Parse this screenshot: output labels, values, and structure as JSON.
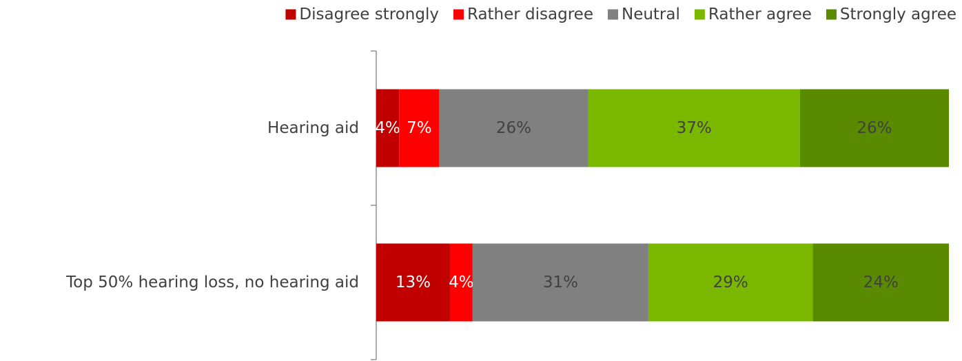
{
  "chart_data": {
    "type": "bar",
    "orientation": "horizontal",
    "stacked": true,
    "categories": [
      "Hearing aid",
      "Top 50% hearing loss, no hearing aid"
    ],
    "series": [
      {
        "name": "Disagree strongly",
        "color": "#c00000",
        "label_color": "#ffffff",
        "values": [
          4,
          13
        ]
      },
      {
        "name": "Rather disagree",
        "color": "#ff0000",
        "label_color": "#ffffff",
        "values": [
          7,
          4
        ]
      },
      {
        "name": "Neutral",
        "color": "#808080",
        "label_color": "#404040",
        "values": [
          26,
          31
        ]
      },
      {
        "name": "Rather agree",
        "color": "#7ab800",
        "label_color": "#404040",
        "values": [
          37,
          29
        ]
      },
      {
        "name": "Strongly agree",
        "color": "#5a8a00",
        "label_color": "#404040",
        "values": [
          26,
          24
        ]
      }
    ],
    "value_suffix": "%",
    "legend_position": "top-right",
    "grid": false
  }
}
